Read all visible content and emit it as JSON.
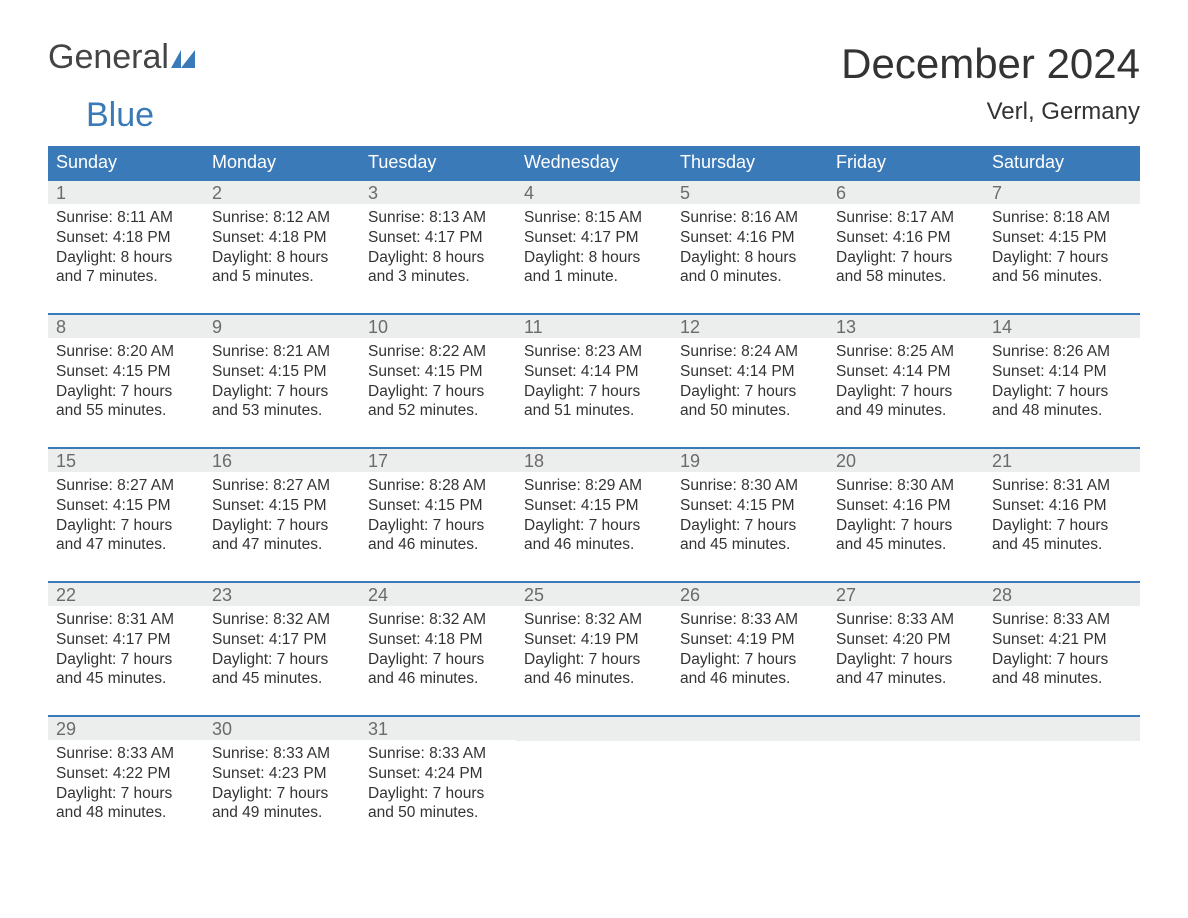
{
  "brand": {
    "general": "General",
    "blue": "Blue"
  },
  "title": "December 2024",
  "location": "Verl, Germany",
  "colors": {
    "header_bg": "#3b7ab8",
    "header_text": "#ffffff",
    "daynum_bg": "#eceded",
    "daynum_text": "#6b6b6b",
    "body_text": "#333333",
    "week_border": "#3b7ab8",
    "page_bg": "#ffffff",
    "logo_blue": "#3b7ab8",
    "logo_gray": "#444444"
  },
  "layout": {
    "columns": 7,
    "rows": 5,
    "font_family": "Arial"
  },
  "weekdays": [
    "Sunday",
    "Monday",
    "Tuesday",
    "Wednesday",
    "Thursday",
    "Friday",
    "Saturday"
  ],
  "days": [
    {
      "n": "1",
      "sunrise": "Sunrise: 8:11 AM",
      "sunset": "Sunset: 4:18 PM",
      "d1": "Daylight: 8 hours",
      "d2": "and 7 minutes."
    },
    {
      "n": "2",
      "sunrise": "Sunrise: 8:12 AM",
      "sunset": "Sunset: 4:18 PM",
      "d1": "Daylight: 8 hours",
      "d2": "and 5 minutes."
    },
    {
      "n": "3",
      "sunrise": "Sunrise: 8:13 AM",
      "sunset": "Sunset: 4:17 PM",
      "d1": "Daylight: 8 hours",
      "d2": "and 3 minutes."
    },
    {
      "n": "4",
      "sunrise": "Sunrise: 8:15 AM",
      "sunset": "Sunset: 4:17 PM",
      "d1": "Daylight: 8 hours",
      "d2": "and 1 minute."
    },
    {
      "n": "5",
      "sunrise": "Sunrise: 8:16 AM",
      "sunset": "Sunset: 4:16 PM",
      "d1": "Daylight: 8 hours",
      "d2": "and 0 minutes."
    },
    {
      "n": "6",
      "sunrise": "Sunrise: 8:17 AM",
      "sunset": "Sunset: 4:16 PM",
      "d1": "Daylight: 7 hours",
      "d2": "and 58 minutes."
    },
    {
      "n": "7",
      "sunrise": "Sunrise: 8:18 AM",
      "sunset": "Sunset: 4:15 PM",
      "d1": "Daylight: 7 hours",
      "d2": "and 56 minutes."
    },
    {
      "n": "8",
      "sunrise": "Sunrise: 8:20 AM",
      "sunset": "Sunset: 4:15 PM",
      "d1": "Daylight: 7 hours",
      "d2": "and 55 minutes."
    },
    {
      "n": "9",
      "sunrise": "Sunrise: 8:21 AM",
      "sunset": "Sunset: 4:15 PM",
      "d1": "Daylight: 7 hours",
      "d2": "and 53 minutes."
    },
    {
      "n": "10",
      "sunrise": "Sunrise: 8:22 AM",
      "sunset": "Sunset: 4:15 PM",
      "d1": "Daylight: 7 hours",
      "d2": "and 52 minutes."
    },
    {
      "n": "11",
      "sunrise": "Sunrise: 8:23 AM",
      "sunset": "Sunset: 4:14 PM",
      "d1": "Daylight: 7 hours",
      "d2": "and 51 minutes."
    },
    {
      "n": "12",
      "sunrise": "Sunrise: 8:24 AM",
      "sunset": "Sunset: 4:14 PM",
      "d1": "Daylight: 7 hours",
      "d2": "and 50 minutes."
    },
    {
      "n": "13",
      "sunrise": "Sunrise: 8:25 AM",
      "sunset": "Sunset: 4:14 PM",
      "d1": "Daylight: 7 hours",
      "d2": "and 49 minutes."
    },
    {
      "n": "14",
      "sunrise": "Sunrise: 8:26 AM",
      "sunset": "Sunset: 4:14 PM",
      "d1": "Daylight: 7 hours",
      "d2": "and 48 minutes."
    },
    {
      "n": "15",
      "sunrise": "Sunrise: 8:27 AM",
      "sunset": "Sunset: 4:15 PM",
      "d1": "Daylight: 7 hours",
      "d2": "and 47 minutes."
    },
    {
      "n": "16",
      "sunrise": "Sunrise: 8:27 AM",
      "sunset": "Sunset: 4:15 PM",
      "d1": "Daylight: 7 hours",
      "d2": "and 47 minutes."
    },
    {
      "n": "17",
      "sunrise": "Sunrise: 8:28 AM",
      "sunset": "Sunset: 4:15 PM",
      "d1": "Daylight: 7 hours",
      "d2": "and 46 minutes."
    },
    {
      "n": "18",
      "sunrise": "Sunrise: 8:29 AM",
      "sunset": "Sunset: 4:15 PM",
      "d1": "Daylight: 7 hours",
      "d2": "and 46 minutes."
    },
    {
      "n": "19",
      "sunrise": "Sunrise: 8:30 AM",
      "sunset": "Sunset: 4:15 PM",
      "d1": "Daylight: 7 hours",
      "d2": "and 45 minutes."
    },
    {
      "n": "20",
      "sunrise": "Sunrise: 8:30 AM",
      "sunset": "Sunset: 4:16 PM",
      "d1": "Daylight: 7 hours",
      "d2": "and 45 minutes."
    },
    {
      "n": "21",
      "sunrise": "Sunrise: 8:31 AM",
      "sunset": "Sunset: 4:16 PM",
      "d1": "Daylight: 7 hours",
      "d2": "and 45 minutes."
    },
    {
      "n": "22",
      "sunrise": "Sunrise: 8:31 AM",
      "sunset": "Sunset: 4:17 PM",
      "d1": "Daylight: 7 hours",
      "d2": "and 45 minutes."
    },
    {
      "n": "23",
      "sunrise": "Sunrise: 8:32 AM",
      "sunset": "Sunset: 4:17 PM",
      "d1": "Daylight: 7 hours",
      "d2": "and 45 minutes."
    },
    {
      "n": "24",
      "sunrise": "Sunrise: 8:32 AM",
      "sunset": "Sunset: 4:18 PM",
      "d1": "Daylight: 7 hours",
      "d2": "and 46 minutes."
    },
    {
      "n": "25",
      "sunrise": "Sunrise: 8:32 AM",
      "sunset": "Sunset: 4:19 PM",
      "d1": "Daylight: 7 hours",
      "d2": "and 46 minutes."
    },
    {
      "n": "26",
      "sunrise": "Sunrise: 8:33 AM",
      "sunset": "Sunset: 4:19 PM",
      "d1": "Daylight: 7 hours",
      "d2": "and 46 minutes."
    },
    {
      "n": "27",
      "sunrise": "Sunrise: 8:33 AM",
      "sunset": "Sunset: 4:20 PM",
      "d1": "Daylight: 7 hours",
      "d2": "and 47 minutes."
    },
    {
      "n": "28",
      "sunrise": "Sunrise: 8:33 AM",
      "sunset": "Sunset: 4:21 PM",
      "d1": "Daylight: 7 hours",
      "d2": "and 48 minutes."
    },
    {
      "n": "29",
      "sunrise": "Sunrise: 8:33 AM",
      "sunset": "Sunset: 4:22 PM",
      "d1": "Daylight: 7 hours",
      "d2": "and 48 minutes."
    },
    {
      "n": "30",
      "sunrise": "Sunrise: 8:33 AM",
      "sunset": "Sunset: 4:23 PM",
      "d1": "Daylight: 7 hours",
      "d2": "and 49 minutes."
    },
    {
      "n": "31",
      "sunrise": "Sunrise: 8:33 AM",
      "sunset": "Sunset: 4:24 PM",
      "d1": "Daylight: 7 hours",
      "d2": "and 50 minutes."
    }
  ]
}
